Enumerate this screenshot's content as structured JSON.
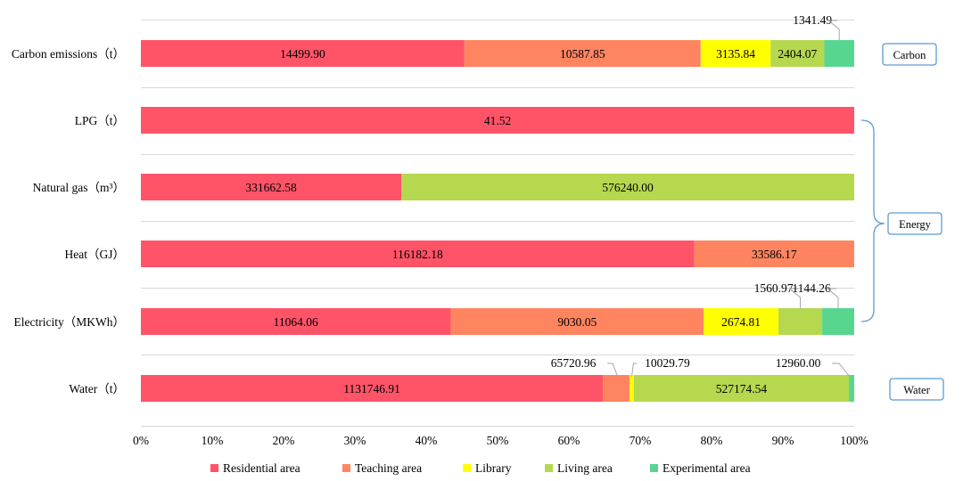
{
  "chart_data": {
    "type": "bar",
    "orientation": "horizontal",
    "stacked": "percent",
    "title": "",
    "xlabel": "",
    "ylabel": "",
    "xlim": [
      0,
      100
    ],
    "x_ticks": [
      "0%",
      "10%",
      "20%",
      "30%",
      "40%",
      "50%",
      "60%",
      "70%",
      "80%",
      "90%",
      "100%"
    ],
    "grid": true,
    "legend_position": "bottom",
    "categories": [
      "Carbon emissions（t）",
      "LPG（t）",
      "Natural gas（m³）",
      "Heat（GJ）",
      "Electricity（MKWh）",
      "Water（t）"
    ],
    "series": [
      {
        "name": "Residential area",
        "color": "#ff5468",
        "values": [
          14499.9,
          41.52,
          331662.58,
          116182.18,
          11064.06,
          1131746.91
        ]
      },
      {
        "name": "Teaching area",
        "color": "#ff8561",
        "values": [
          10587.85,
          0,
          0,
          33586.17,
          9030.05,
          65720.96
        ]
      },
      {
        "name": "Library",
        "color": "#ffff00",
        "values": [
          3135.84,
          0,
          0,
          0,
          2674.81,
          10029.79
        ]
      },
      {
        "name": "Living area",
        "color": "#b5d84f",
        "values": [
          2404.07,
          0,
          576240.0,
          0,
          1560.97,
          527174.54
        ]
      },
      {
        "name": "Experimental area",
        "color": "#58d690",
        "values": [
          1341.49,
          0,
          0,
          0,
          1144.26,
          12960.0
        ]
      }
    ],
    "data_labels": [
      [
        "14499.90",
        "10587.85",
        "3135.84",
        "2404.07",
        "1341.49"
      ],
      [
        "41.52",
        "",
        "",
        "",
        ""
      ],
      [
        "331662.58",
        "",
        "",
        "576240.00",
        ""
      ],
      [
        "116182.18",
        "33586.17",
        "",
        "",
        ""
      ],
      [
        "11064.06",
        "9030.05",
        "2674.81",
        "1560.97",
        "1144.26"
      ],
      [
        "1131746.91",
        "65720.96",
        "10029.79",
        "527174.54",
        "12960.00"
      ]
    ],
    "groups": [
      {
        "label": "Carbon",
        "rows": [
          0
        ]
      },
      {
        "label": "Energy",
        "rows": [
          1,
          2,
          3,
          4
        ]
      },
      {
        "label": "Water",
        "rows": [
          5
        ]
      }
    ]
  }
}
